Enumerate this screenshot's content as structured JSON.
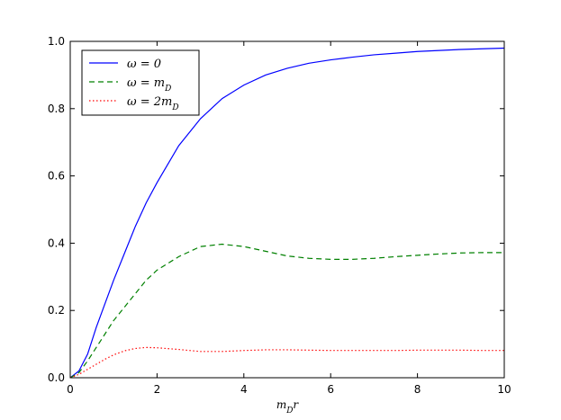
{
  "chart_data": {
    "type": "line",
    "title": "",
    "xlabel": "m_D r",
    "ylabel": "",
    "xlim": [
      0,
      10
    ],
    "ylim": [
      0,
      1.0
    ],
    "x_ticks": [
      0,
      2,
      4,
      6,
      8,
      10
    ],
    "y_ticks": [
      0.0,
      0.2,
      0.4,
      0.6,
      0.8,
      1.0
    ],
    "x_tick_labels": [
      "0",
      "2",
      "4",
      "6",
      "8",
      "10"
    ],
    "y_tick_labels": [
      "0.0",
      "0.2",
      "0.4",
      "0.6",
      "0.8",
      "1.0"
    ],
    "grid": false,
    "legend_position": "top-left",
    "series": [
      {
        "name": "ω = 0",
        "color": "#0000ff",
        "style": "solid",
        "x": [
          0,
          0.2,
          0.4,
          0.6,
          0.8,
          1.0,
          1.25,
          1.5,
          1.75,
          2.0,
          2.5,
          3.0,
          3.5,
          4.0,
          4.5,
          5.0,
          5.5,
          6.0,
          6.5,
          7.0,
          7.5,
          8.0,
          8.5,
          9.0,
          9.5,
          10.0
        ],
        "y": [
          0.0,
          0.02,
          0.07,
          0.15,
          0.22,
          0.29,
          0.37,
          0.45,
          0.52,
          0.58,
          0.69,
          0.77,
          0.83,
          0.87,
          0.9,
          0.92,
          0.935,
          0.945,
          0.953,
          0.96,
          0.965,
          0.97,
          0.973,
          0.976,
          0.978,
          0.98
        ]
      },
      {
        "name": "ω = m_D",
        "color": "#008000",
        "style": "dashed",
        "x": [
          0,
          0.2,
          0.4,
          0.6,
          0.8,
          1.0,
          1.25,
          1.5,
          1.75,
          2.0,
          2.5,
          3.0,
          3.5,
          4.0,
          4.5,
          5.0,
          5.5,
          6.0,
          6.5,
          7.0,
          7.5,
          8.0,
          8.5,
          9.0,
          9.5,
          10.0
        ],
        "y": [
          0.0,
          0.015,
          0.05,
          0.09,
          0.13,
          0.17,
          0.21,
          0.25,
          0.29,
          0.32,
          0.36,
          0.39,
          0.397,
          0.39,
          0.376,
          0.362,
          0.355,
          0.352,
          0.352,
          0.355,
          0.36,
          0.364,
          0.368,
          0.371,
          0.372,
          0.372
        ]
      },
      {
        "name": "ω = 2m_D",
        "color": "#ff0000",
        "style": "dotted",
        "x": [
          0,
          0.2,
          0.4,
          0.6,
          0.8,
          1.0,
          1.25,
          1.5,
          1.75,
          2.0,
          2.5,
          3.0,
          3.5,
          4.0,
          4.5,
          5.0,
          5.5,
          6.0,
          6.5,
          7.0,
          7.5,
          8.0,
          8.5,
          9.0,
          9.5,
          10.0
        ],
        "y": [
          0.0,
          0.01,
          0.025,
          0.04,
          0.055,
          0.068,
          0.08,
          0.087,
          0.09,
          0.089,
          0.084,
          0.078,
          0.078,
          0.081,
          0.083,
          0.083,
          0.082,
          0.081,
          0.081,
          0.081,
          0.081,
          0.082,
          0.082,
          0.082,
          0.081,
          0.081
        ]
      }
    ]
  }
}
